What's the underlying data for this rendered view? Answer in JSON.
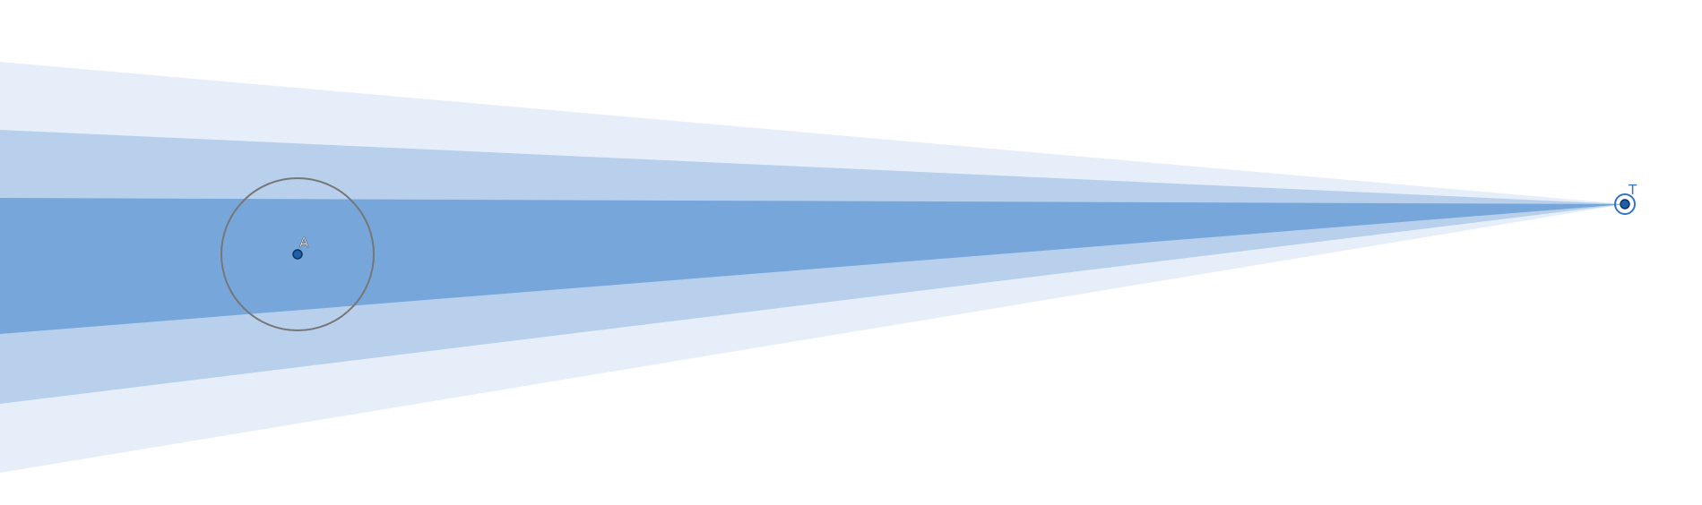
{
  "scene": {
    "background": "#ffffff",
    "wedges": [
      {
        "name": "outer-wedge",
        "fill": "#e6eff9"
      },
      {
        "name": "middle-wedge",
        "fill": "#b9d0ec"
      },
      {
        "name": "inner-wedge",
        "fill": "#77a6da"
      }
    ],
    "circle": {
      "stroke": "#777777"
    },
    "points": {
      "A": {
        "label": "A",
        "fill": "#1f5fa8",
        "label_color": "#ffffff"
      },
      "T": {
        "label": "T",
        "fill": "#1f5fa8",
        "ring_color": "#2f74c8",
        "label_color": "#2f74c8"
      }
    }
  }
}
